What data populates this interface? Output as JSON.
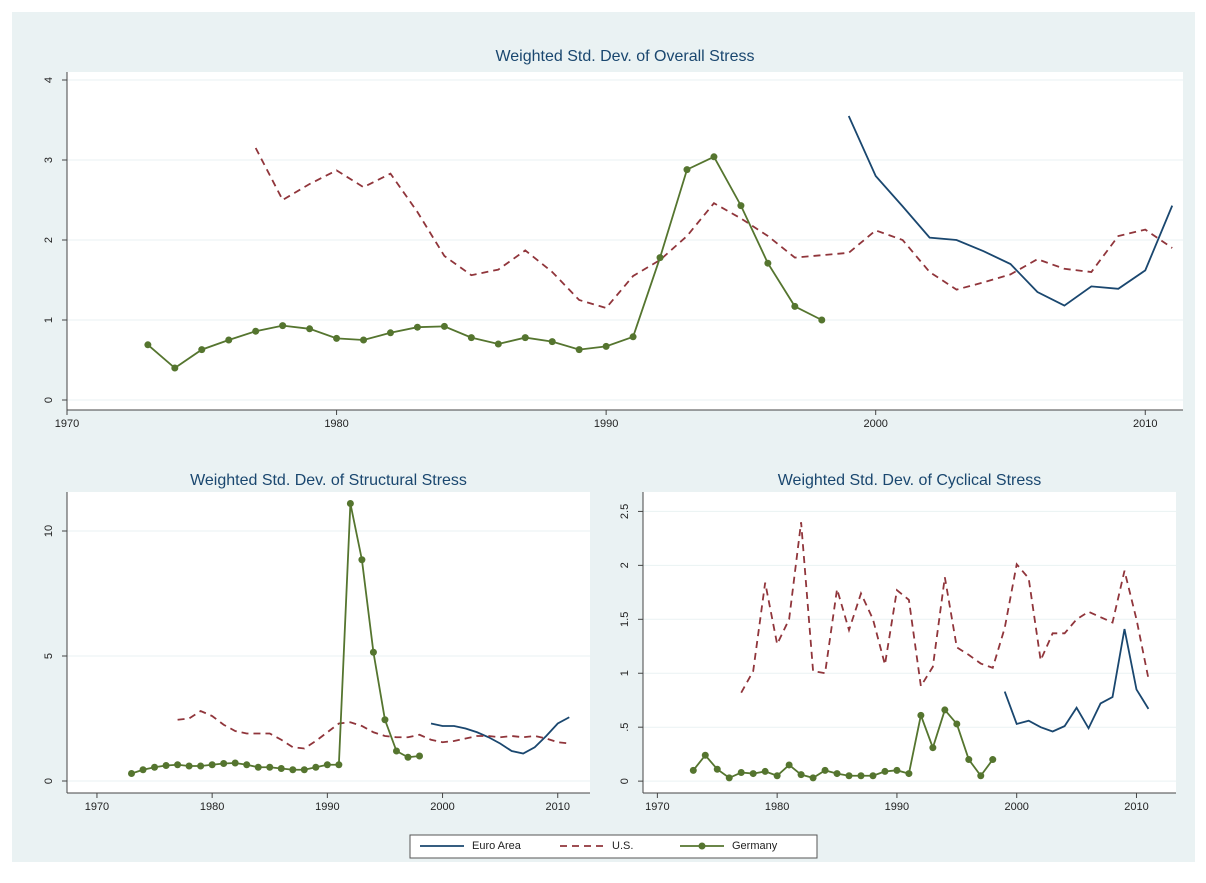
{
  "chart_data": [
    {
      "type": "line",
      "title": "Weighted Std. Dev. of Overall Stress",
      "x": [
        1973,
        1974,
        1975,
        1976,
        1977,
        1978,
        1979,
        1980,
        1981,
        1982,
        1983,
        1984,
        1985,
        1986,
        1987,
        1988,
        1989,
        1990,
        1991,
        1992,
        1993,
        1994,
        1995,
        1996,
        1997,
        1998,
        1999,
        2000,
        2001,
        2002,
        2003,
        2004,
        2005,
        2006,
        2007,
        2008,
        2009,
        2010,
        2011
      ],
      "xlim": [
        1970,
        2011.4
      ],
      "xticks": [
        1970,
        1980,
        1990,
        2000,
        2010
      ],
      "ylim": [
        -0.125,
        4.1
      ],
      "yticks": [
        0,
        1,
        2,
        3,
        4
      ],
      "grid": true,
      "series": [
        {
          "name": "Euro Area",
          "color": "#1a476f",
          "style": "solid",
          "marker": false,
          "values": [
            null,
            null,
            null,
            null,
            null,
            null,
            null,
            null,
            null,
            null,
            null,
            null,
            null,
            null,
            null,
            null,
            null,
            null,
            null,
            null,
            null,
            null,
            null,
            null,
            null,
            null,
            3.55,
            2.8,
            2.42,
            2.03,
            2.0,
            1.86,
            1.7,
            1.35,
            1.18,
            1.42,
            1.39,
            1.62,
            2.43
          ]
        },
        {
          "name": "U.S.",
          "color": "#90353b",
          "style": "dashed",
          "marker": false,
          "values": [
            null,
            null,
            null,
            null,
            3.15,
            2.5,
            2.7,
            2.87,
            2.66,
            2.83,
            2.35,
            1.8,
            1.56,
            1.63,
            1.87,
            1.6,
            1.25,
            1.15,
            1.55,
            1.75,
            2.05,
            2.46,
            2.27,
            2.05,
            1.78,
            1.81,
            1.84,
            2.12,
            2.0,
            1.6,
            1.38,
            1.47,
            1.57,
            1.76,
            1.64,
            1.6,
            2.05,
            2.13,
            1.9
          ]
        },
        {
          "name": "Germany",
          "color": "#55752f",
          "style": "solid",
          "marker": true,
          "values": [
            0.69,
            0.4,
            0.63,
            0.75,
            0.86,
            0.93,
            0.89,
            0.77,
            0.75,
            0.84,
            0.91,
            0.92,
            0.78,
            0.7,
            0.78,
            0.73,
            0.63,
            0.67,
            0.79,
            1.78,
            2.88,
            3.04,
            2.43,
            1.71,
            1.17,
            1.0,
            null,
            null,
            null,
            null,
            null,
            null,
            null,
            null,
            null,
            null,
            null,
            null,
            null
          ]
        }
      ]
    },
    {
      "type": "line",
      "title": "Weighted Std. Dev. of Structural Stress",
      "x": [
        1973,
        1974,
        1975,
        1976,
        1977,
        1978,
        1979,
        1980,
        1981,
        1982,
        1983,
        1984,
        1985,
        1986,
        1987,
        1988,
        1989,
        1990,
        1991,
        1992,
        1993,
        1994,
        1995,
        1996,
        1997,
        1998,
        1999,
        2000,
        2001,
        2002,
        2003,
        2004,
        2005,
        2006,
        2007,
        2008,
        2009,
        2010,
        2011
      ],
      "xlim": [
        1967.4,
        2012.8
      ],
      "xticks": [
        1970,
        1980,
        1990,
        2000,
        2010
      ],
      "ylim": [
        -0.48,
        11.56
      ],
      "yticks": [
        0,
        5,
        10
      ],
      "grid": true,
      "series": [
        {
          "name": "Euro Area",
          "color": "#1a476f",
          "style": "solid",
          "marker": false,
          "values": [
            null,
            null,
            null,
            null,
            null,
            null,
            null,
            null,
            null,
            null,
            null,
            null,
            null,
            null,
            null,
            null,
            null,
            null,
            null,
            null,
            null,
            null,
            null,
            null,
            null,
            null,
            2.3,
            2.2,
            2.2,
            2.1,
            1.95,
            1.75,
            1.5,
            1.2,
            1.1,
            1.35,
            1.8,
            2.3,
            2.55
          ]
        },
        {
          "name": "U.S.",
          "color": "#90353b",
          "style": "dashed",
          "marker": false,
          "values": [
            null,
            null,
            null,
            null,
            2.45,
            2.5,
            2.8,
            2.6,
            2.25,
            2.0,
            1.9,
            1.9,
            1.9,
            1.65,
            1.35,
            1.3,
            1.6,
            1.95,
            2.3,
            2.35,
            2.2,
            1.95,
            1.8,
            1.75,
            1.75,
            1.85,
            1.65,
            1.55,
            1.6,
            1.7,
            1.8,
            1.8,
            1.75,
            1.8,
            1.75,
            1.8,
            1.7,
            1.55,
            1.5
          ]
        },
        {
          "name": "Germany",
          "color": "#55752f",
          "style": "solid",
          "marker": true,
          "values": [
            0.3,
            0.45,
            0.55,
            0.62,
            0.65,
            0.6,
            0.6,
            0.65,
            0.7,
            0.72,
            0.65,
            0.55,
            0.55,
            0.5,
            0.45,
            0.45,
            0.55,
            0.65,
            0.65,
            11.1,
            8.85,
            5.15,
            2.45,
            1.2,
            0.95,
            1.0,
            null,
            null,
            null,
            null,
            null,
            null,
            null,
            null,
            null,
            null,
            null,
            null,
            null
          ]
        }
      ]
    },
    {
      "type": "line",
      "title": "Weighted Std. Dev. of Cyclical Stress",
      "x": [
        1973,
        1974,
        1975,
        1976,
        1977,
        1978,
        1979,
        1980,
        1981,
        1982,
        1983,
        1984,
        1985,
        1986,
        1987,
        1988,
        1989,
        1990,
        1991,
        1992,
        1993,
        1994,
        1995,
        1996,
        1997,
        1998,
        1999,
        2000,
        2001,
        2002,
        2003,
        2004,
        2005,
        2006,
        2007,
        2008,
        2009,
        2010,
        2011
      ],
      "xlim": [
        1968.8,
        2013.3
      ],
      "xticks": [
        1970,
        1980,
        1990,
        2000,
        2010
      ],
      "ylim": [
        -0.11,
        2.68
      ],
      "yticks": [
        0,
        {
          "value": 0.5,
          "label": ".5"
        },
        1,
        1.5,
        2,
        2.5
      ],
      "grid": true,
      "series": [
        {
          "name": "Euro Area",
          "color": "#1a476f",
          "style": "solid",
          "marker": false,
          "values": [
            null,
            null,
            null,
            null,
            null,
            null,
            null,
            null,
            null,
            null,
            null,
            null,
            null,
            null,
            null,
            null,
            null,
            null,
            null,
            null,
            null,
            null,
            null,
            null,
            null,
            null,
            0.83,
            0.53,
            0.56,
            0.5,
            0.46,
            0.51,
            0.68,
            0.49,
            0.72,
            0.78,
            1.41,
            0.85,
            0.67
          ]
        },
        {
          "name": "U.S.",
          "color": "#90353b",
          "style": "dashed",
          "marker": false,
          "values": [
            null,
            null,
            null,
            null,
            0.82,
            1.02,
            1.84,
            1.27,
            1.5,
            2.4,
            1.02,
            1.0,
            1.78,
            1.4,
            1.74,
            1.5,
            1.08,
            1.77,
            1.68,
            0.88,
            1.06,
            1.89,
            1.24,
            1.17,
            1.09,
            1.05,
            1.42,
            2.01,
            1.88,
            1.12,
            1.37,
            1.37,
            1.5,
            1.57,
            1.52,
            1.47,
            1.95,
            1.5,
            0.95
          ]
        },
        {
          "name": "Germany",
          "color": "#55752f",
          "style": "solid",
          "marker": true,
          "values": [
            0.1,
            0.24,
            0.11,
            0.03,
            0.08,
            0.07,
            0.09,
            0.05,
            0.15,
            0.06,
            0.03,
            0.1,
            0.07,
            0.05,
            0.05,
            0.05,
            0.09,
            0.1,
            0.07,
            0.61,
            0.31,
            0.66,
            0.53,
            0.2,
            0.05,
            0.2,
            null,
            null,
            null,
            null,
            null,
            null,
            null,
            null,
            null,
            null,
            null,
            null,
            null
          ]
        }
      ]
    }
  ]
}
